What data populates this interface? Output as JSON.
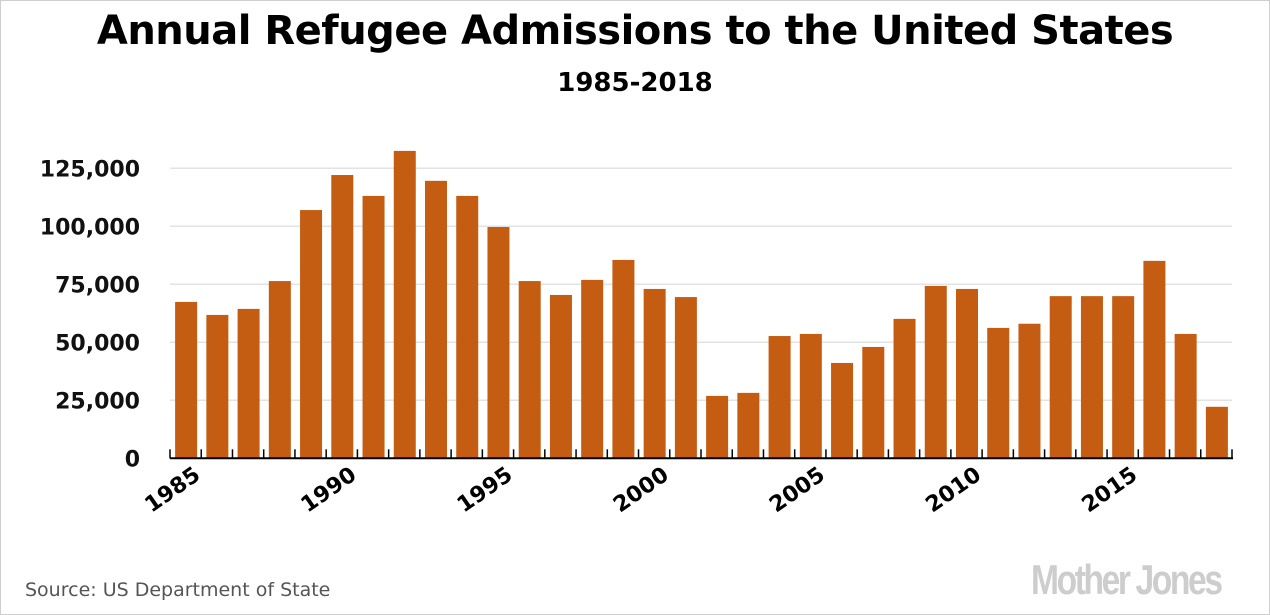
{
  "chart_data": {
    "type": "bar",
    "title": "Annual Refugee Admissions to the United States",
    "subtitle": "1985-2018",
    "xlabel": "",
    "ylabel": "",
    "ylim": [
      0,
      125000
    ],
    "grid": true,
    "bar_color": "#c45c12",
    "y_ticks": [
      0,
      25000,
      50000,
      75000,
      100000,
      125000
    ],
    "y_tick_labels": [
      "0",
      "25,000",
      "50,000",
      "75,000",
      "100,000",
      "125,000"
    ],
    "x_tick_labels": [
      "1985",
      "1990",
      "1995",
      "2000",
      "2005",
      "2010",
      "2015"
    ],
    "categories": [
      "1985",
      "1986",
      "1987",
      "1988",
      "1989",
      "1990",
      "1991",
      "1992",
      "1993",
      "1994",
      "1995",
      "1996",
      "1997",
      "1998",
      "1999",
      "2000",
      "2001",
      "2002",
      "2003",
      "2004",
      "2005",
      "2006",
      "2007",
      "2008",
      "2009",
      "2010",
      "2011",
      "2012",
      "2013",
      "2014",
      "2015",
      "2016",
      "2017",
      "2018"
    ],
    "values": [
      67400,
      61800,
      64400,
      76400,
      107000,
      122100,
      113100,
      132500,
      119600,
      113100,
      99700,
      76400,
      70400,
      76900,
      85500,
      73000,
      69500,
      26900,
      28200,
      52700,
      53600,
      41100,
      48000,
      60100,
      74300,
      73000,
      56200,
      58000,
      69900,
      69900,
      69900,
      85100,
      53600,
      22200
    ]
  },
  "footer": {
    "source": "Source: US Department of State",
    "brand": "Mother Jones"
  }
}
